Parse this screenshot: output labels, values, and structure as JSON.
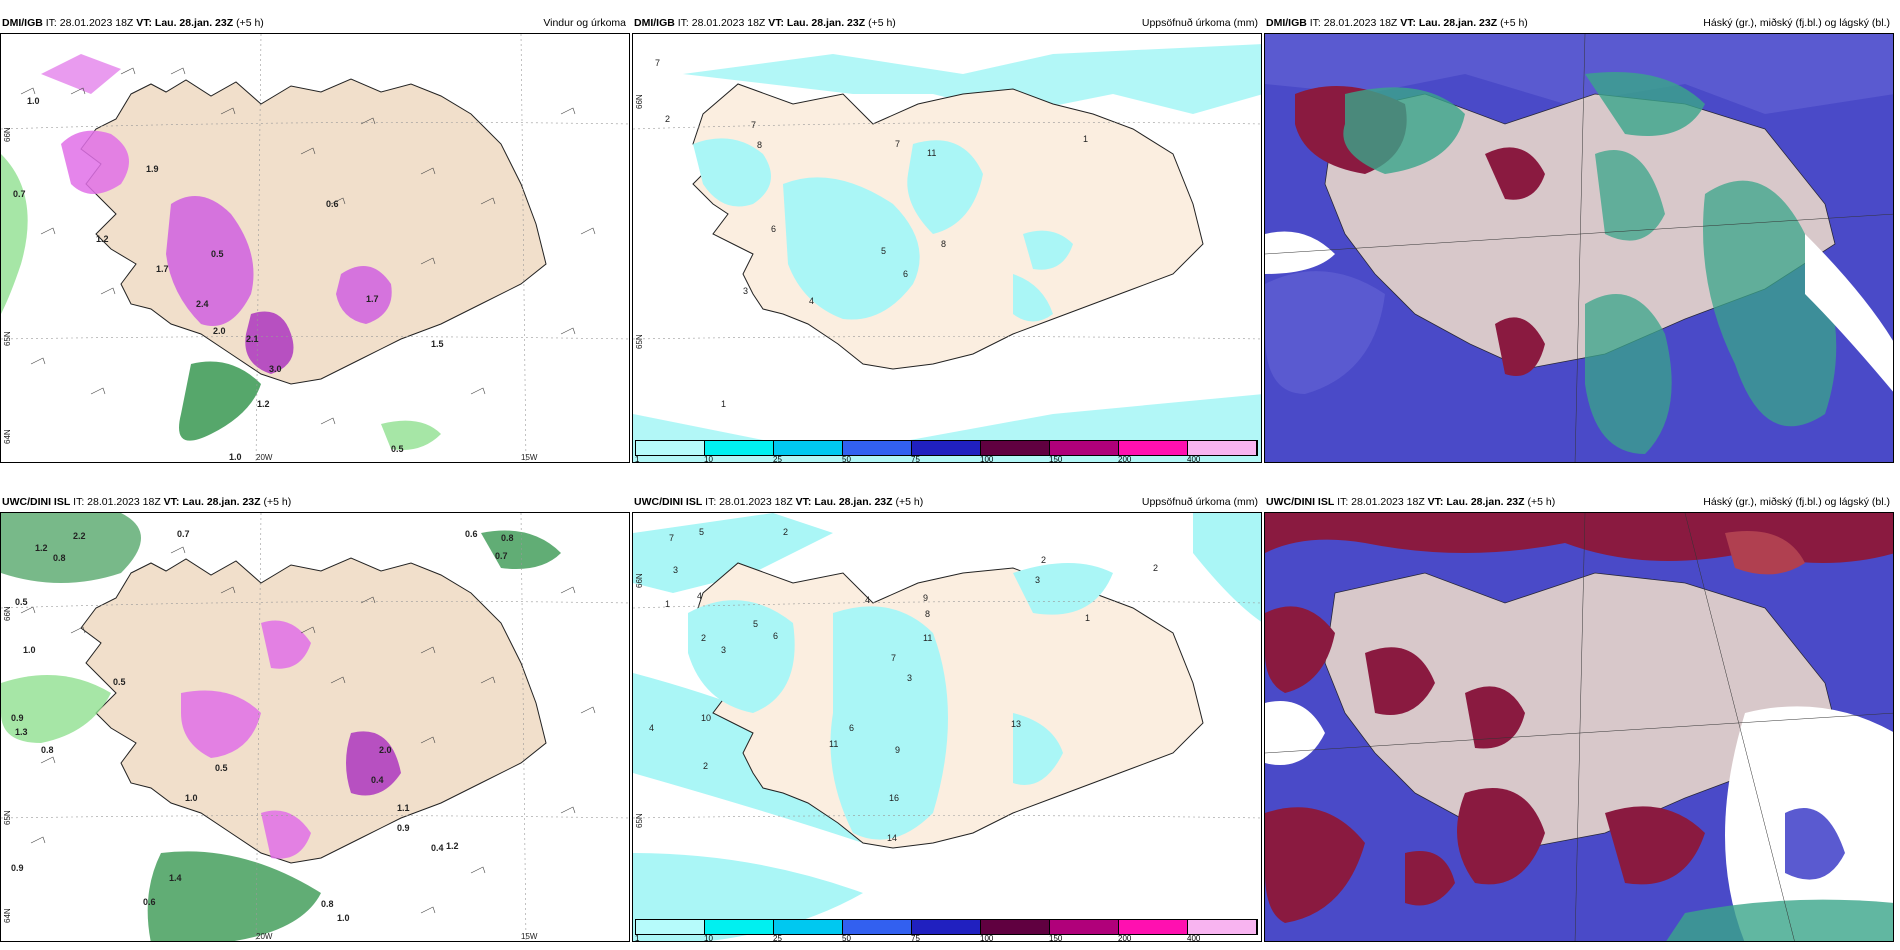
{
  "panels": [
    {
      "src": "DMI/IGB",
      "it": "IT: 28.01.2023 18Z",
      "vt": "VT: Lau. 28.jan. 23Z",
      "lead": "(+5 h)",
      "right": "Vindur og úrkoma",
      "grid_labels": {
        "lon_a": "20W",
        "lon_b": "15W",
        "lat_a": "66N",
        "lat_b": "65N",
        "lat_c": "64N"
      },
      "values": [
        "1.0",
        "0.7",
        "1.9",
        "1.2",
        "1.7",
        "0.5",
        "2.1",
        "2.0",
        "2.4",
        "3.0",
        "1.7",
        "0.6",
        "1.5",
        "1.2",
        "1.0",
        "0.5"
      ]
    },
    {
      "src": "DMI/IGB",
      "it": "IT: 28.01.2023 18Z",
      "vt": "VT: Lau. 28.jan. 23Z",
      "lead": "(+5 h)",
      "right": "Uppsöfnuð úrkoma (mm)",
      "grid_labels": {
        "lat_a": "66N",
        "lat_b": "65N"
      },
      "values": [
        "7",
        "2",
        "7",
        "8",
        "7",
        "11",
        "1",
        "6",
        "8",
        "5",
        "4",
        "3",
        "6",
        "1"
      ]
    },
    {
      "src": "DMI/IGB",
      "it": "IT: 28.01.2023 18Z",
      "vt": "VT: Lau. 28.jan. 23Z",
      "lead": "(+5 h)",
      "right": "Háský (gr.), miðský (fj.bl.) og lágský (bl.)"
    },
    {
      "src": "UWC/DINI ISL",
      "it": "IT: 28.01.2023 18Z",
      "vt": "VT: Lau. 28.jan. 23Z",
      "lead": "(+5 h)",
      "right": "",
      "grid_labels": {
        "lon_a": "20W",
        "lon_b": "15W",
        "lat_a": "66N",
        "lat_b": "65N",
        "lat_c": "64N"
      },
      "values": [
        "2.2",
        "1.2",
        "0.8",
        "0.7",
        "0.6",
        "0.8",
        "0.7",
        "0.5",
        "1.0",
        "0.5",
        "0.9",
        "1.3",
        "0.8",
        "1.0",
        "0.5",
        "1.1",
        "0.9",
        "0.4",
        "1.2",
        "0.9",
        "1.4",
        "0.6",
        "0.8",
        "1.0",
        "2.0",
        "0.4"
      ]
    },
    {
      "src": "UWC/DINI ISL",
      "it": "IT: 28.01.2023 18Z",
      "vt": "VT: Lau. 28.jan. 23Z",
      "lead": "(+5 h)",
      "right": "Uppsöfnuð úrkoma (mm)",
      "grid_labels": {
        "lat_a": "66N",
        "lat_b": "65N"
      },
      "values": [
        "7",
        "5",
        "3",
        "4",
        "2",
        "1",
        "2",
        "3",
        "6",
        "5",
        "4",
        "9",
        "8",
        "11",
        "7",
        "3",
        "10",
        "6",
        "11",
        "9",
        "16",
        "14",
        "2",
        "4",
        "13",
        "1",
        "2",
        "3",
        "2"
      ]
    },
    {
      "src": "UWC/DINI ISL",
      "it": "IT: 28.01.2023 18Z",
      "vt": "VT: Lau. 28.jan. 23Z",
      "lead": "(+5 h)",
      "right": "Háský (gr.), miðský (fj.bl.) og lágský (bl.)"
    }
  ],
  "colorbar": {
    "ticks": [
      "1",
      "10",
      "25",
      "50",
      "75",
      "100",
      "150",
      "200",
      "400"
    ],
    "colors": [
      "#b6fbfb",
      "#00f0f0",
      "#00c8f0",
      "#3260f0",
      "#2020c0",
      "#600040",
      "#b0007a",
      "#ff10b0",
      "#f8b4f0"
    ]
  },
  "colors": {
    "land": "#f1dfcb",
    "land_light": "#fbeee0",
    "precip_teal": "#aaf6f6",
    "precip_pink": "#e070e8",
    "precip_green": "#90e090",
    "cloud_high": "#3aa58a",
    "cloud_mid": "#4a4ac8",
    "cloud_low": "#8a1a40"
  }
}
